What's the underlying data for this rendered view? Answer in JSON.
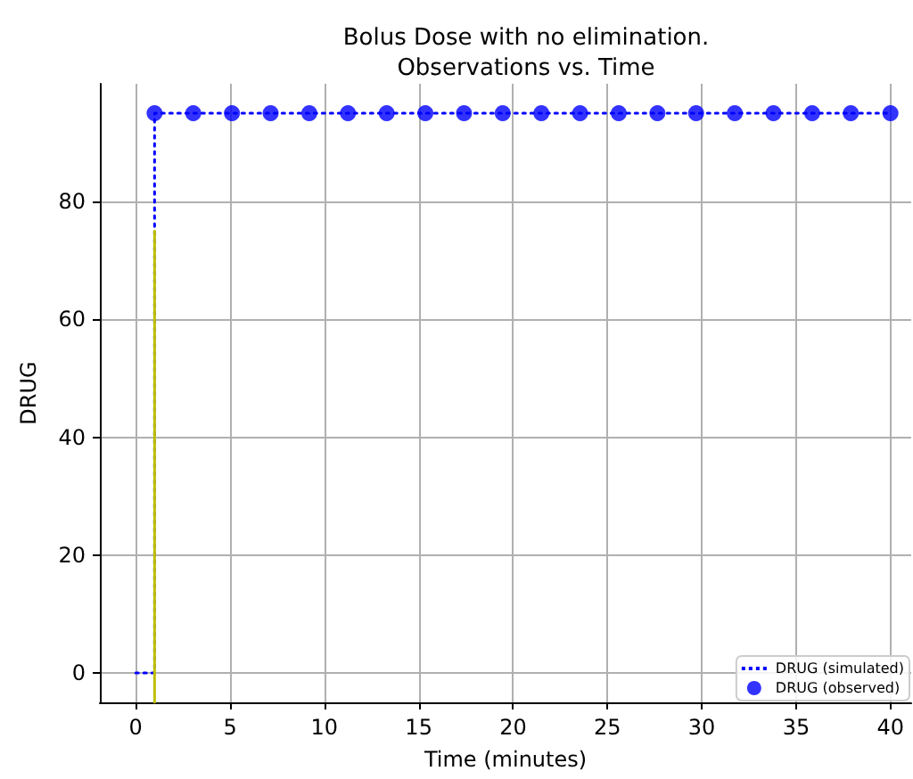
{
  "chart_data": {
    "type": "line",
    "title": "Bolus Dose with no elimination.\nObservations vs. Time",
    "xlabel": "Time (minutes)",
    "ylabel": "DRUG",
    "series": [
      {
        "name": "DRUG (simulated)",
        "color": "#0000ff",
        "marker": "none",
        "line_style": "dotted",
        "x": [
          0,
          1,
          1,
          40
        ],
        "values": [
          0,
          0,
          95,
          95
        ]
      },
      {
        "name": "DRUG (observed)",
        "type": "scatter",
        "color": "#0000ff",
        "marker": "circle",
        "x": [
          1,
          3.05,
          5.1,
          7.15,
          9.2,
          11.25,
          13.3,
          15.35,
          17.4,
          19.45,
          21.5,
          23.55,
          25.6,
          27.65,
          29.7,
          31.75,
          33.8,
          35.85,
          37.9,
          40
        ],
        "values": [
          95,
          95,
          95,
          95,
          95,
          95,
          95,
          95,
          95,
          95,
          95,
          95,
          95,
          95,
          95,
          95,
          95,
          95,
          95,
          95
        ]
      },
      {
        "color": "#bfbf00",
        "marker": "none",
        "line_style": "solid",
        "x": [
          1,
          1
        ],
        "values": [
          -5,
          75
        ]
      }
    ],
    "xlim": [
      -1.9,
      41.1
    ],
    "xticks": [
      0,
      5,
      10,
      15,
      20,
      25,
      30,
      35,
      40
    ],
    "ylim": [
      -5,
      100
    ],
    "yticks": [
      0,
      20,
      40,
      60,
      80
    ],
    "grid": true,
    "legend": "bottom right"
  }
}
